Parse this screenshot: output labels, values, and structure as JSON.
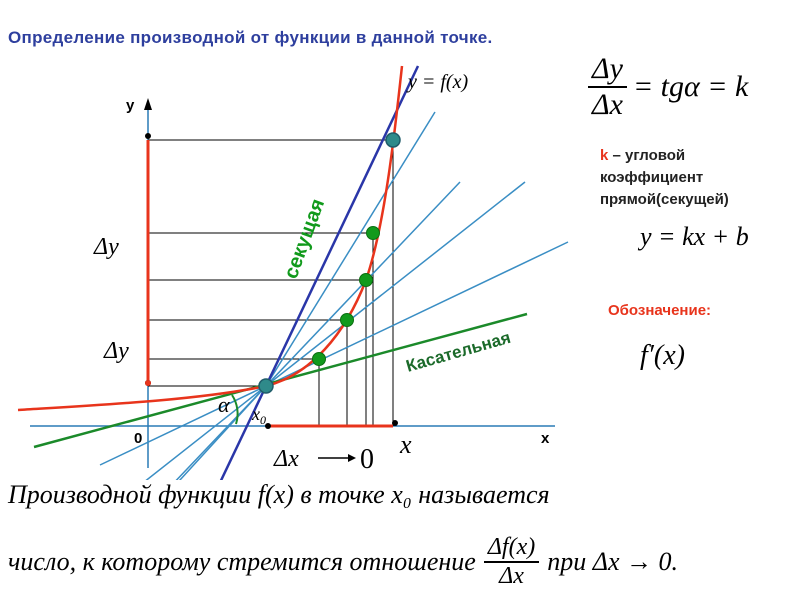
{
  "title": "Определение производной от функции в данной точке.",
  "graph": {
    "y_axis": "y",
    "x_axis": "x",
    "origin": "0",
    "curve_label": "y = f(x)",
    "secant_label": "секущая",
    "tangent_label": "Касательная",
    "delta_y_upper": "Δy",
    "delta_y_lower": "Δy",
    "delta_x_arrow": "Δx",
    "arrow_target": "0",
    "x0_label": "x",
    "x0_sub": "0",
    "x_point_label": "x",
    "alpha": "α"
  },
  "formulas": {
    "main_num": "Δy",
    "main_den": "Δx",
    "main_rest": "= tgα = k",
    "k_letter": "k",
    "k_desc": " – угловой коэффициент прямой(секущей)",
    "line_eq": "y = kx + b",
    "notation_label": "Обозначение:",
    "notation": "f′(x)"
  },
  "definition": {
    "line1": "Производной функции f(x) в точке x₀ называется",
    "line2_pre": "число, к которому стремится отношение",
    "frac_num": "Δf(x)",
    "frac_den": "Δx",
    "line2_post": "при Δx → 0."
  },
  "colors": {
    "title": "#2e3f9e",
    "curve": "#e8341c",
    "secant": "#2a36a8",
    "lines": "#3a8ec4",
    "tangent": "#1b8a2a",
    "points": "#119a1c",
    "accent": "#e8341c"
  }
}
